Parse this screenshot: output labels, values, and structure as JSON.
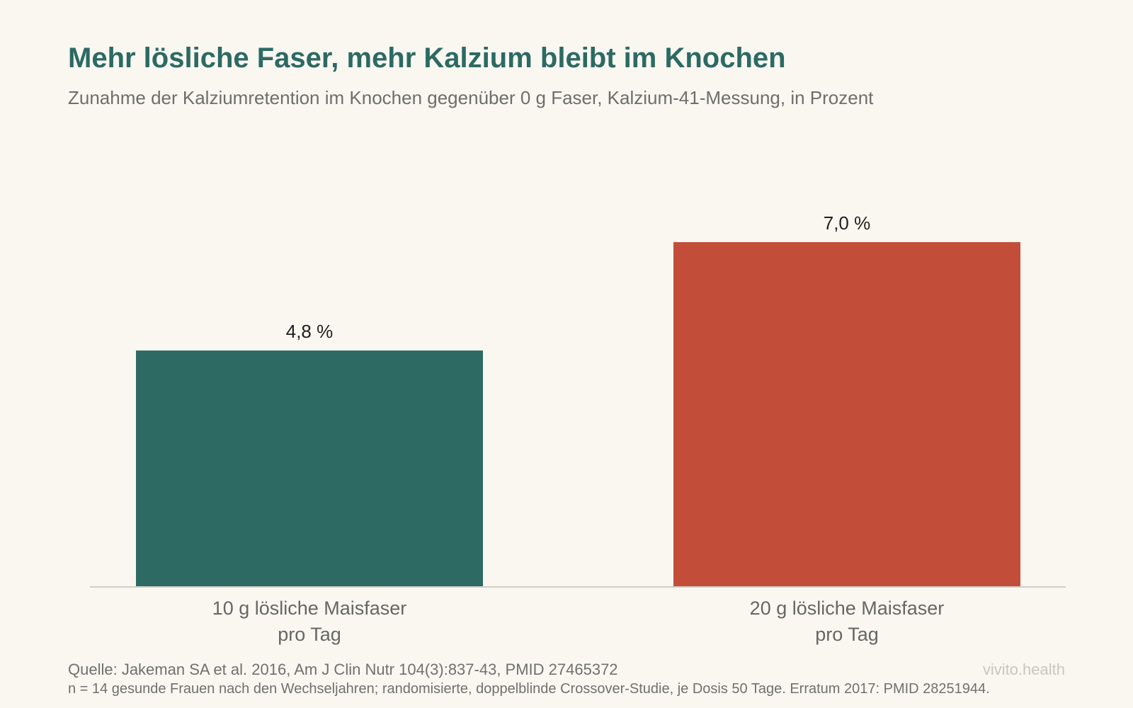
{
  "chart_data": {
    "type": "bar",
    "title": "Mehr lösliche Faser, mehr Kalzium bleibt im Knochen",
    "subtitle": "Zunahme der Kalziumretention im Knochen gegenüber 0 g Faser, Kalzium-41-Messung, in Prozent",
    "categories": [
      [
        "10 g lösliche Maisfaser",
        "pro Tag"
      ],
      [
        "20 g lösliche Maisfaser",
        "pro Tag"
      ]
    ],
    "values": [
      4.8,
      7.0
    ],
    "value_labels": [
      "4,8 %",
      "7,0 %"
    ],
    "colors": [
      "#2d6a63",
      "#c24e3a"
    ],
    "ylim": [
      0,
      7.0
    ],
    "grid": false,
    "legend": "none"
  },
  "footer": {
    "source": "Quelle: Jakeman SA et al. 2016, Am J Clin Nutr 104(3):837-43, PMID 27465372",
    "note": "n = 14 gesunde Frauen nach den Wechseljahren; randomisierte, doppelblinde Crossover-Studie, je Dosis 50 Tage. Erratum 2017: PMID 28251944.",
    "brand": "vivito.health"
  },
  "colors": {
    "background": "#faf7f1",
    "title": "#2c6a63",
    "axis": "#d0cdc7"
  }
}
